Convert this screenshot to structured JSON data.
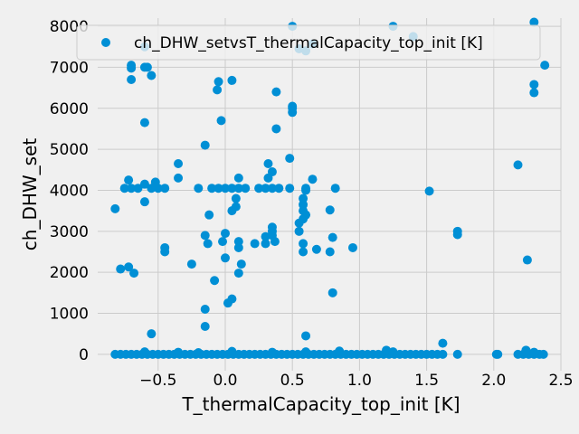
{
  "chart_data": {
    "type": "scatter",
    "title": "",
    "xlabel": "T_thermalCapacity_top_init [K]",
    "ylabel": "ch_DHW_set",
    "xlim": [
      -0.95,
      2.5
    ],
    "ylim": [
      -400,
      8200
    ],
    "xticks": [
      -0.5,
      0.0,
      0.5,
      1.0,
      1.5,
      2.0,
      2.5
    ],
    "xtick_labels": [
      "−0.5",
      "0.0",
      "0.5",
      "1.0",
      "1.5",
      "2.0",
      "2.5"
    ],
    "yticks": [
      0,
      1000,
      2000,
      3000,
      4000,
      5000,
      6000,
      7000,
      8000
    ],
    "ytick_labels": [
      "0",
      "1000",
      "2000",
      "3000",
      "4000",
      "5000",
      "6000",
      "7000",
      "8000"
    ],
    "grid": true,
    "legend_position": "top",
    "color": "#008fd5",
    "series": [
      {
        "name": "ch_DHW_setvsT_thermalCapacity_top_init [K]",
        "points": [
          [
            -0.6,
            7500
          ],
          [
            -0.6,
            7000
          ],
          [
            -0.58,
            7000
          ],
          [
            -0.7,
            7050
          ],
          [
            -0.7,
            6980
          ],
          [
            -0.7,
            6700
          ],
          [
            -0.55,
            6800
          ],
          [
            -0.6,
            5650
          ],
          [
            -0.05,
            6650
          ],
          [
            -0.06,
            6450
          ],
          [
            0.05,
            6680
          ],
          [
            -0.03,
            5700
          ],
          [
            -0.72,
            4250
          ],
          [
            -0.75,
            4050
          ],
          [
            -0.7,
            4050
          ],
          [
            -0.65,
            4050
          ],
          [
            -0.6,
            4150
          ],
          [
            -0.55,
            4050
          ],
          [
            -0.52,
            4200
          ],
          [
            -0.5,
            4050
          ],
          [
            -0.45,
            4050
          ],
          [
            -0.35,
            4650
          ],
          [
            -0.35,
            4300
          ],
          [
            -0.2,
            4050
          ],
          [
            -0.1,
            4050
          ],
          [
            -0.05,
            4050
          ],
          [
            0.0,
            4050
          ],
          [
            0.05,
            4050
          ],
          [
            0.1,
            4050
          ],
          [
            0.15,
            4050
          ],
          [
            0.25,
            4050
          ],
          [
            0.3,
            4050
          ],
          [
            0.35,
            4050
          ],
          [
            -0.6,
            3720
          ],
          [
            -0.15,
            5100
          ],
          [
            -0.12,
            3400
          ],
          [
            -0.15,
            2900
          ],
          [
            -0.13,
            2700
          ],
          [
            -0.25,
            2200
          ],
          [
            -0.82,
            3550
          ],
          [
            -0.78,
            2080
          ],
          [
            -0.72,
            2130
          ],
          [
            -0.68,
            1980
          ],
          [
            -0.45,
            2600
          ],
          [
            -0.45,
            2500
          ],
          [
            -0.08,
            1800
          ],
          [
            -0.15,
            1100
          ],
          [
            -0.15,
            680
          ],
          [
            -0.55,
            500
          ],
          [
            0.0,
            2350
          ],
          [
            0.0,
            2950
          ],
          [
            -0.02,
            2750
          ],
          [
            0.05,
            3500
          ],
          [
            0.08,
            3600
          ],
          [
            0.08,
            3800
          ],
          [
            0.1,
            4300
          ],
          [
            0.1,
            2750
          ],
          [
            0.1,
            2600
          ],
          [
            0.12,
            2200
          ],
          [
            0.1,
            1980
          ],
          [
            0.05,
            1350
          ],
          [
            0.02,
            1250
          ],
          [
            0.22,
            2700
          ],
          [
            0.3,
            2700
          ],
          [
            0.3,
            2870
          ],
          [
            0.35,
            2900
          ],
          [
            0.35,
            3000
          ],
          [
            0.35,
            3100
          ],
          [
            0.37,
            2750
          ],
          [
            0.32,
            4650
          ],
          [
            0.35,
            4450
          ],
          [
            0.32,
            4300
          ],
          [
            0.4,
            4050
          ],
          [
            0.38,
            6400
          ],
          [
            0.38,
            5500
          ],
          [
            0.5,
            6050
          ],
          [
            0.5,
            5900
          ],
          [
            0.5,
            6000
          ],
          [
            0.48,
            4780
          ],
          [
            0.48,
            4050
          ],
          [
            0.55,
            7450
          ],
          [
            0.6,
            7400
          ],
          [
            0.65,
            7570
          ],
          [
            0.5,
            8000
          ],
          [
            0.55,
            3200
          ],
          [
            0.55,
            3000
          ],
          [
            0.58,
            3800
          ],
          [
            0.58,
            3650
          ],
          [
            0.58,
            3500
          ],
          [
            0.58,
            3300
          ],
          [
            0.6,
            3400
          ],
          [
            0.6,
            4050
          ],
          [
            0.6,
            4000
          ],
          [
            0.65,
            4270
          ],
          [
            0.58,
            2700
          ],
          [
            0.58,
            2500
          ],
          [
            0.78,
            3520
          ],
          [
            0.82,
            4050
          ],
          [
            0.8,
            2850
          ],
          [
            0.78,
            2500
          ],
          [
            0.68,
            2560
          ],
          [
            0.95,
            2600
          ],
          [
            0.8,
            1500
          ],
          [
            0.6,
            450
          ],
          [
            1.62,
            270
          ],
          [
            1.25,
            8000
          ],
          [
            1.4,
            7750
          ],
          [
            1.52,
            3980
          ],
          [
            1.73,
            3000
          ],
          [
            1.73,
            2920
          ],
          [
            2.18,
            4620
          ],
          [
            2.25,
            2300
          ],
          [
            2.3,
            8100
          ],
          [
            2.38,
            7050
          ],
          [
            2.3,
            6580
          ],
          [
            2.3,
            6380
          ],
          [
            -0.82,
            0
          ],
          [
            -0.78,
            0
          ],
          [
            -0.74,
            0
          ],
          [
            -0.7,
            0
          ],
          [
            -0.66,
            0
          ],
          [
            -0.62,
            0
          ],
          [
            -0.58,
            0
          ],
          [
            -0.54,
            0
          ],
          [
            -0.5,
            0
          ],
          [
            -0.46,
            0
          ],
          [
            -0.42,
            0
          ],
          [
            -0.38,
            0
          ],
          [
            -0.34,
            0
          ],
          [
            -0.3,
            0
          ],
          [
            -0.26,
            0
          ],
          [
            -0.22,
            0
          ],
          [
            -0.18,
            0
          ],
          [
            -0.14,
            0
          ],
          [
            -0.1,
            0
          ],
          [
            -0.06,
            0
          ],
          [
            -0.02,
            0
          ],
          [
            0.02,
            0
          ],
          [
            0.06,
            0
          ],
          [
            0.1,
            0
          ],
          [
            0.14,
            0
          ],
          [
            0.18,
            0
          ],
          [
            0.22,
            0
          ],
          [
            0.26,
            0
          ],
          [
            0.3,
            0
          ],
          [
            0.34,
            0
          ],
          [
            0.38,
            0
          ],
          [
            0.42,
            0
          ],
          [
            0.46,
            0
          ],
          [
            0.5,
            0
          ],
          [
            0.54,
            0
          ],
          [
            0.58,
            0
          ],
          [
            0.62,
            0
          ],
          [
            0.66,
            0
          ],
          [
            0.7,
            0
          ],
          [
            0.74,
            0
          ],
          [
            0.78,
            0
          ],
          [
            0.82,
            0
          ],
          [
            0.86,
            0
          ],
          [
            0.9,
            0
          ],
          [
            0.94,
            0
          ],
          [
            0.98,
            0
          ],
          [
            1.02,
            0
          ],
          [
            1.06,
            0
          ],
          [
            1.1,
            0
          ],
          [
            1.14,
            0
          ],
          [
            1.18,
            0
          ],
          [
            1.22,
            0
          ],
          [
            1.26,
            0
          ],
          [
            1.3,
            0
          ],
          [
            1.34,
            0
          ],
          [
            1.38,
            0
          ],
          [
            1.42,
            0
          ],
          [
            1.46,
            0
          ],
          [
            1.5,
            0
          ],
          [
            1.54,
            0
          ],
          [
            1.58,
            0
          ],
          [
            1.62,
            0
          ],
          [
            1.73,
            0
          ],
          [
            2.02,
            0
          ],
          [
            2.03,
            0
          ],
          [
            2.18,
            0
          ],
          [
            2.22,
            0
          ],
          [
            2.26,
            0
          ],
          [
            2.3,
            0
          ],
          [
            2.34,
            0
          ],
          [
            2.37,
            0
          ],
          [
            -0.6,
            60
          ],
          [
            -0.35,
            50
          ],
          [
            -0.2,
            40
          ],
          [
            0.05,
            70
          ],
          [
            0.35,
            50
          ],
          [
            0.6,
            60
          ],
          [
            0.85,
            80
          ],
          [
            1.2,
            100
          ],
          [
            1.25,
            60
          ],
          [
            2.24,
            100
          ],
          [
            2.3,
            50
          ]
        ]
      }
    ]
  }
}
